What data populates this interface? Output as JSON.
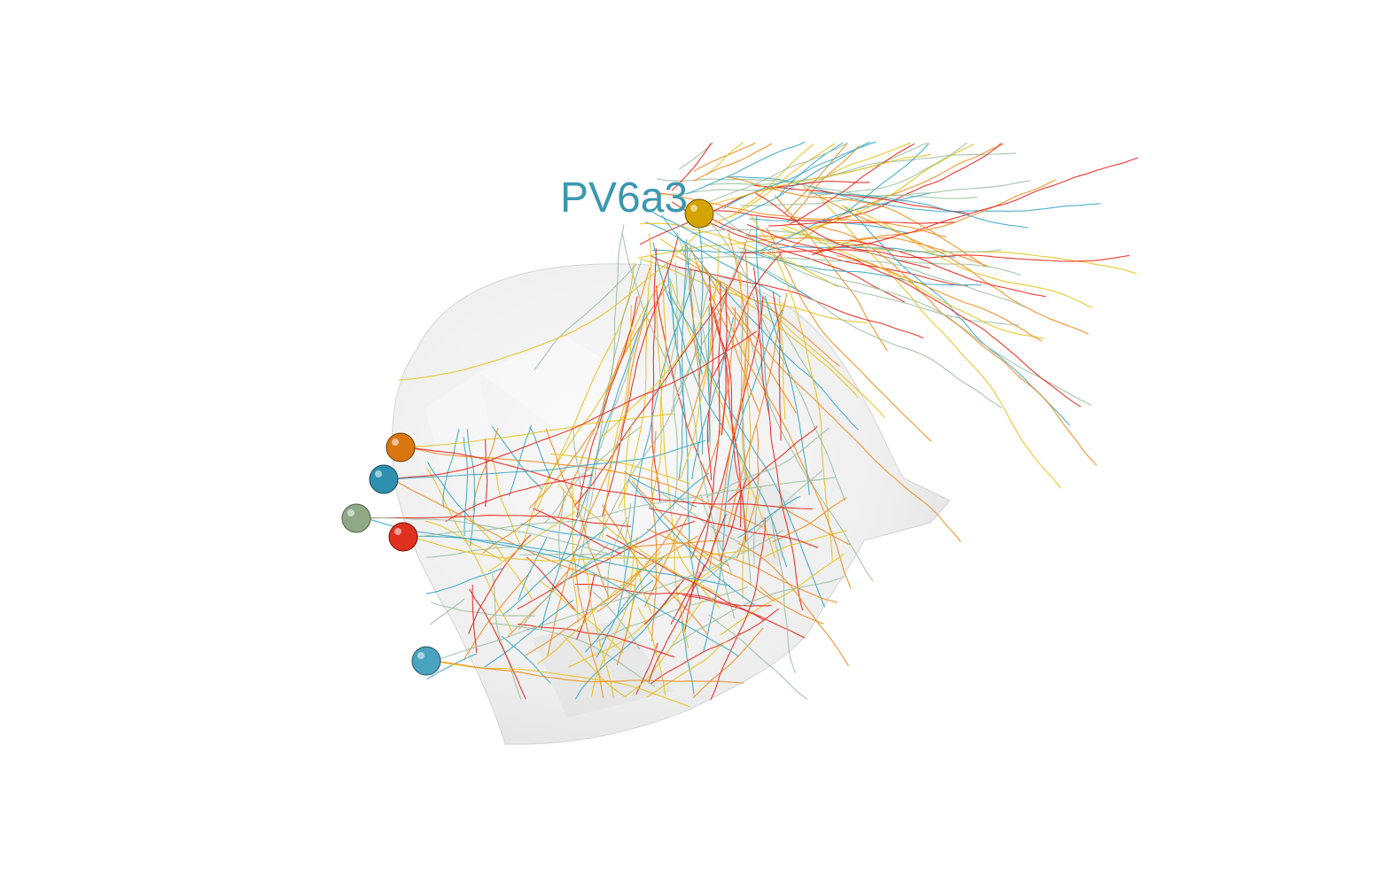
{
  "scene": {
    "label": "PV6a3",
    "label_color": "#3b98b0",
    "background": "#ffffff",
    "mesh_color": "#d9d9d9",
    "somas": [
      {
        "name": "yellow-soma",
        "color": "#d4a300"
      },
      {
        "name": "orange-soma",
        "color": "#d9760f"
      },
      {
        "name": "blue-soma",
        "color": "#2e8fae"
      },
      {
        "name": "sage-soma",
        "color": "#8fa886"
      },
      {
        "name": "red-soma",
        "color": "#e0301e"
      },
      {
        "name": "lightblue-soma",
        "color": "#4aa3bf"
      }
    ],
    "arbor_colors": [
      "#e8c21a",
      "#f08a1c",
      "#e8221a",
      "#3aa7c4",
      "#9cc0a0"
    ]
  }
}
